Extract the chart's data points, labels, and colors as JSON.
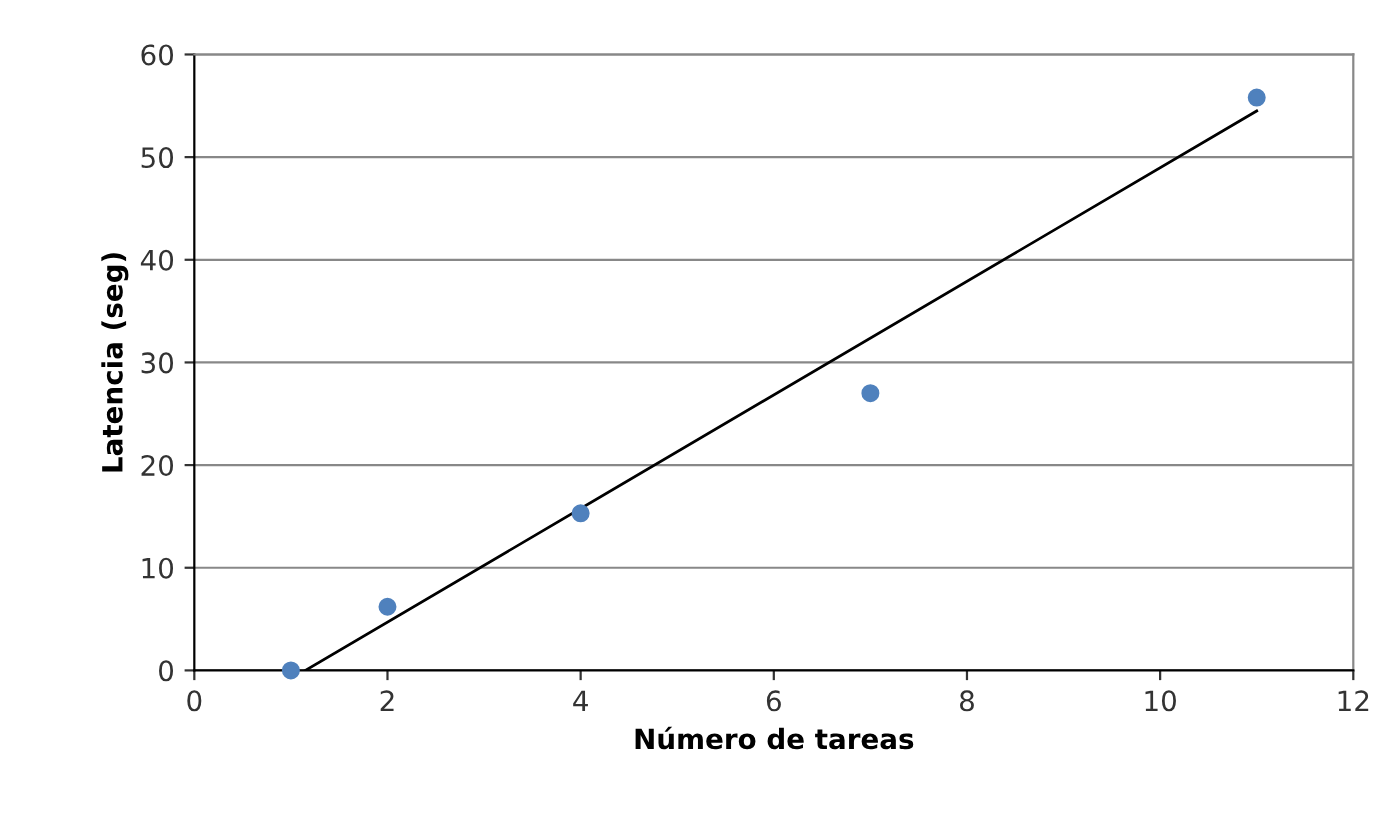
{
  "chart_data": {
    "type": "scatter",
    "xlabel": "Número de tareas",
    "ylabel": "Latencia (seg)",
    "xlim": [
      0,
      12
    ],
    "xticks": [
      0,
      2,
      4,
      6,
      8,
      10,
      12
    ],
    "ylim": [
      0,
      60
    ],
    "yticks": [
      0,
      10,
      20,
      30,
      40,
      50,
      60
    ],
    "grid": "y",
    "marker": "circle",
    "series": [
      {
        "color": "#4f81bd",
        "x": [
          1,
          2,
          4,
          7,
          11
        ],
        "values": [
          0,
          6.2,
          15.3,
          27,
          55.8
        ]
      },
      {
        "type": "line",
        "marker": "none",
        "color": "#000000",
        "x": [
          1.15,
          11
        ],
        "values": [
          0,
          54.5
        ]
      }
    ]
  }
}
